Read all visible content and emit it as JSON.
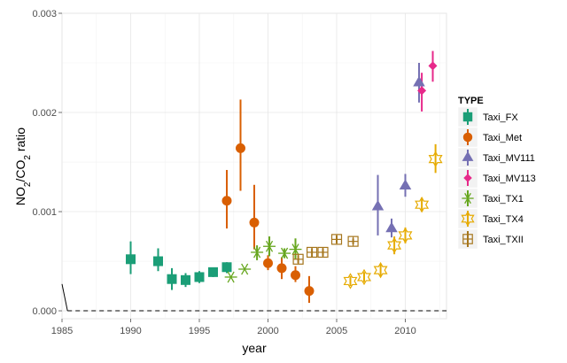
{
  "chart_data": {
    "type": "scatter",
    "xlabel": "year",
    "ylabel": "NO2/CO2 ratio",
    "ylabel_parts": {
      "a": "NO",
      "a_sub": "2",
      "b": "/CO",
      "b_sub": "2",
      "c": " ratio"
    },
    "xlim": [
      1985,
      2013
    ],
    "ylim": [
      -8e-05,
      0.003
    ],
    "x_ticks": [
      1985,
      1990,
      1995,
      2000,
      2005,
      2010
    ],
    "x_tick_labels": [
      "1985",
      "1990",
      "1995",
      "2000",
      "2005",
      "2010"
    ],
    "y_ticks": [
      0,
      0.001,
      0.002,
      0.003
    ],
    "y_tick_labels": [
      "0.000",
      "0.001",
      "0.002",
      "0.003"
    ],
    "reference_line": {
      "y": 0,
      "style": "dashed",
      "x_start": 1985.4
    },
    "edge_segment": {
      "x": [
        1985,
        1985.4
      ],
      "y": [
        0.00027,
        0
      ]
    },
    "grid": true,
    "legend": {
      "title": "TYPE",
      "position": "right"
    },
    "colors": {
      "Taxi_FX": "#1b9e77",
      "Taxi_Met": "#d95f02",
      "Taxi_MV111": "#7570b3",
      "Taxi_MV113": "#e7298a",
      "Taxi_TX1": "#66a61e",
      "Taxi_TX4": "#e6ab02",
      "Taxi_TXII": "#a6761d"
    },
    "series": [
      {
        "name": "Taxi_FX",
        "shape": "square",
        "points": [
          {
            "x": 1990,
            "y": 0.00052,
            "lo": 0.00037,
            "hi": 0.0007
          },
          {
            "x": 1992,
            "y": 0.0005,
            "lo": 0.0004,
            "hi": 0.00063
          },
          {
            "x": 1993,
            "y": 0.00032,
            "lo": 0.00021,
            "hi": 0.00043
          },
          {
            "x": 1994,
            "y": 0.00031,
            "lo": 0.00024,
            "hi": 0.00038
          },
          {
            "x": 1995,
            "y": 0.00034,
            "lo": 0.00028,
            "hi": 0.0004
          },
          {
            "x": 1996,
            "y": 0.00039,
            "lo": 0.00034,
            "hi": 0.00043
          },
          {
            "x": 1997,
            "y": 0.00044,
            "lo": 0.00038,
            "hi": 0.00049
          }
        ]
      },
      {
        "name": "Taxi_Met",
        "shape": "circle",
        "points": [
          {
            "x": 1997,
            "y": 0.00111,
            "lo": 0.00083,
            "hi": 0.00142
          },
          {
            "x": 1998,
            "y": 0.00164,
            "lo": 0.00121,
            "hi": 0.00213
          },
          {
            "x": 1999,
            "y": 0.00089,
            "lo": 0.00062,
            "hi": 0.00127
          },
          {
            "x": 2000,
            "y": 0.00048,
            "lo": 0.00041,
            "hi": 0.00056
          },
          {
            "x": 2001,
            "y": 0.00043,
            "lo": 0.00032,
            "hi": 0.00054
          },
          {
            "x": 2002,
            "y": 0.00036,
            "lo": 0.00029,
            "hi": 0.00045
          },
          {
            "x": 2003,
            "y": 0.0002,
            "lo": 8e-05,
            "hi": 0.00035
          }
        ]
      },
      {
        "name": "Taxi_MV111",
        "shape": "triangle",
        "points": [
          {
            "x": 2008,
            "y": 0.00105,
            "lo": 0.00076,
            "hi": 0.00137
          },
          {
            "x": 2009,
            "y": 0.00083,
            "lo": 0.00074,
            "hi": 0.00093
          },
          {
            "x": 2010,
            "y": 0.00126,
            "lo": 0.00115,
            "hi": 0.00138
          },
          {
            "x": 2011,
            "y": 0.0023,
            "lo": 0.0021,
            "hi": 0.0025
          }
        ]
      },
      {
        "name": "Taxi_MV113",
        "shape": "diamond",
        "points": [
          {
            "x": 2011.2,
            "y": 0.00222,
            "lo": 0.00201,
            "hi": 0.0024
          },
          {
            "x": 2012,
            "y": 0.00247,
            "lo": 0.00231,
            "hi": 0.00262
          }
        ]
      },
      {
        "name": "Taxi_TX1",
        "shape": "asterisk",
        "points": [
          {
            "x": 1997.3,
            "y": 0.00034,
            "lo": null,
            "hi": null
          },
          {
            "x": 1998.3,
            "y": 0.00042,
            "lo": null,
            "hi": null
          },
          {
            "x": 1999.2,
            "y": 0.00059,
            "lo": 0.00051,
            "hi": 0.00066
          },
          {
            "x": 2000.1,
            "y": 0.00065,
            "lo": 0.00055,
            "hi": 0.00075
          },
          {
            "x": 2001.2,
            "y": 0.00058,
            "lo": 0.00053,
            "hi": 0.00063
          },
          {
            "x": 2002,
            "y": 0.00062,
            "lo": 0.00052,
            "hi": 0.00073
          }
        ]
      },
      {
        "name": "Taxi_TX4",
        "shape": "star6",
        "points": [
          {
            "x": 2006,
            "y": 0.0003,
            "lo": 0.00025,
            "hi": 0.00035
          },
          {
            "x": 2007,
            "y": 0.00034,
            "lo": 0.00029,
            "hi": 0.00039
          },
          {
            "x": 2008.2,
            "y": 0.00041,
            "lo": 0.00035,
            "hi": 0.00047
          },
          {
            "x": 2009.2,
            "y": 0.00066,
            "lo": 0.00057,
            "hi": 0.00075
          },
          {
            "x": 2010,
            "y": 0.00076,
            "lo": 0.00068,
            "hi": 0.00084
          },
          {
            "x": 2011.2,
            "y": 0.00107,
            "lo": 0.001,
            "hi": 0.00114
          },
          {
            "x": 2012.2,
            "y": 0.00153,
            "lo": 0.00139,
            "hi": 0.00168
          }
        ]
      },
      {
        "name": "Taxi_TXII",
        "shape": "square-plus",
        "points": [
          {
            "x": 2002.2,
            "y": 0.00052,
            "lo": 0.00048,
            "hi": 0.00056
          },
          {
            "x": 2003.2,
            "y": 0.00059,
            "lo": 0.00054,
            "hi": 0.00063
          },
          {
            "x": 2004,
            "y": 0.00059,
            "lo": 0.00055,
            "hi": 0.00063
          },
          {
            "x": 2005,
            "y": 0.00072,
            "lo": 0.00068,
            "hi": 0.00076
          },
          {
            "x": 2006.2,
            "y": 0.0007,
            "lo": 0.00067,
            "hi": 0.00073
          }
        ]
      }
    ]
  }
}
